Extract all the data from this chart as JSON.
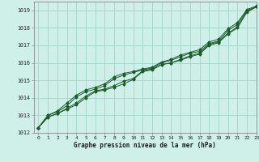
{
  "xlabel": "Graphe pression niveau de la mer (hPa)",
  "background_color": "#cef0e8",
  "grid_color": "#a8d8cc",
  "line_color": "#1a5c28",
  "ylim": [
    1012,
    1019.5
  ],
  "xlim": [
    -0.5,
    23
  ],
  "yticks": [
    1012,
    1013,
    1014,
    1015,
    1016,
    1017,
    1018,
    1019
  ],
  "xticks": [
    0,
    1,
    2,
    3,
    4,
    5,
    6,
    7,
    8,
    9,
    10,
    11,
    12,
    13,
    14,
    15,
    16,
    17,
    18,
    19,
    20,
    21,
    22,
    23
  ],
  "series": [
    [
      1012.3,
      1012.9,
      1013.1,
      1013.35,
      1013.6,
      1014.0,
      1014.35,
      1014.45,
      1014.6,
      1014.8,
      1015.05,
      1015.5,
      1015.6,
      1015.9,
      1016.0,
      1016.15,
      1016.35,
      1016.5,
      1017.0,
      1017.15,
      1017.65,
      1018.0,
      1018.9,
      1019.2
    ],
    [
      1012.3,
      1012.9,
      1013.1,
      1013.4,
      1013.7,
      1014.1,
      1014.4,
      1014.5,
      1014.7,
      1014.95,
      1015.1,
      1015.55,
      1015.65,
      1015.9,
      1016.0,
      1016.2,
      1016.4,
      1016.55,
      1017.05,
      1017.2,
      1017.7,
      1018.05,
      1018.95,
      1019.2
    ],
    [
      1012.3,
      1013.0,
      1013.2,
      1013.55,
      1014.05,
      1014.35,
      1014.5,
      1014.7,
      1015.1,
      1015.3,
      1015.45,
      1015.6,
      1015.7,
      1016.0,
      1016.15,
      1016.35,
      1016.55,
      1016.65,
      1017.1,
      1017.25,
      1017.85,
      1018.2,
      1019.0,
      1019.2
    ],
    [
      1012.3,
      1013.0,
      1013.25,
      1013.7,
      1014.15,
      1014.45,
      1014.6,
      1014.8,
      1015.2,
      1015.4,
      1015.5,
      1015.65,
      1015.75,
      1016.05,
      1016.2,
      1016.45,
      1016.6,
      1016.75,
      1017.2,
      1017.35,
      1017.95,
      1018.3,
      1019.05,
      1019.25
    ]
  ]
}
